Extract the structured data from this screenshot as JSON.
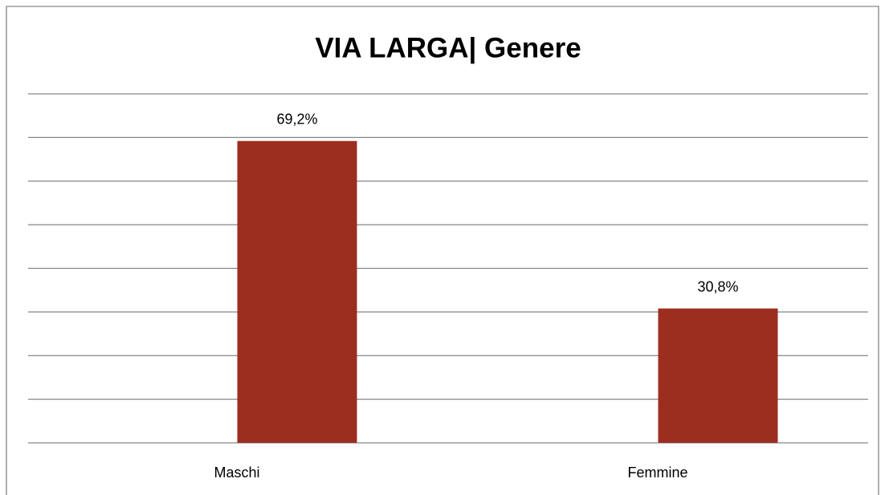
{
  "chart_data": {
    "type": "bar",
    "title": "VIA LARGA| Genere",
    "categories": [
      "Maschi",
      "Femmine"
    ],
    "values": [
      69.2,
      30.8
    ],
    "value_labels": [
      "69,2%",
      "30,8%"
    ],
    "color": "#9c2e20",
    "ylim": [
      0,
      80
    ],
    "yticks": [
      0,
      10,
      20,
      30,
      40,
      50,
      60,
      70,
      80
    ],
    "grid": true
  }
}
